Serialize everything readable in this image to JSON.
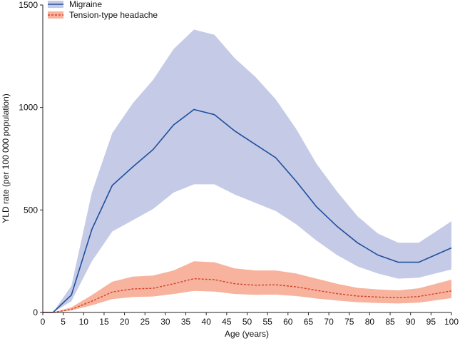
{
  "chart_data": {
    "type": "line",
    "title": "",
    "xlabel": "Age (years)",
    "ylabel": "YLD rate (per 100 000 population)",
    "xlim": [
      0,
      100
    ],
    "ylim": [
      0,
      1500
    ],
    "x_ticks": [
      "0",
      "5",
      "10",
      "15",
      "20",
      "25",
      "30",
      "35",
      "40",
      "45",
      "50",
      "55",
      "60",
      "65",
      "70",
      "75",
      "80",
      "85",
      "90",
      "95",
      "100"
    ],
    "y_ticks": [
      "0",
      "500",
      "1000",
      "1500"
    ],
    "legend_position": "top-left",
    "colors": {
      "migraine_line": "#1e4f9c",
      "migraine_band": "#c5cae6",
      "tth_line": "#d2412e",
      "tth_band": "#f7b39d",
      "axis": "#222222"
    },
    "series": [
      {
        "name": "Migraine",
        "style": "solid",
        "x": [
          0,
          2.5,
          7,
          12,
          17,
          22,
          27,
          32,
          37,
          42,
          47,
          52,
          57,
          62,
          67,
          72,
          77,
          82,
          87,
          92,
          100
        ],
        "values": [
          0,
          0,
          85,
          405,
          620,
          710,
          795,
          915,
          990,
          965,
          885,
          820,
          755,
          640,
          515,
          420,
          340,
          280,
          245,
          245,
          315
        ],
        "lower": [
          0,
          0,
          55,
          250,
          395,
          450,
          505,
          585,
          625,
          625,
          575,
          535,
          495,
          430,
          350,
          280,
          225,
          190,
          165,
          170,
          210
        ],
        "upper": [
          0,
          0,
          130,
          585,
          875,
          1020,
          1135,
          1285,
          1380,
          1355,
          1240,
          1150,
          1040,
          895,
          725,
          590,
          470,
          385,
          340,
          340,
          445
        ]
      },
      {
        "name": "Tension-type headache",
        "style": "dashed",
        "x": [
          0,
          2.5,
          7,
          12,
          17,
          22,
          27,
          32,
          37,
          42,
          47,
          52,
          57,
          62,
          67,
          72,
          77,
          82,
          87,
          92,
          100
        ],
        "values": [
          0,
          0,
          15,
          55,
          100,
          115,
          118,
          140,
          165,
          160,
          140,
          133,
          135,
          125,
          108,
          92,
          80,
          75,
          72,
          78,
          105
        ],
        "lower": [
          0,
          0,
          10,
          35,
          65,
          75,
          78,
          90,
          105,
          102,
          90,
          86,
          87,
          80,
          68,
          58,
          50,
          46,
          44,
          48,
          70
        ],
        "upper": [
          0,
          0,
          25,
          85,
          150,
          175,
          180,
          205,
          250,
          245,
          215,
          205,
          205,
          190,
          165,
          140,
          120,
          112,
          108,
          118,
          160
        ]
      }
    ]
  }
}
